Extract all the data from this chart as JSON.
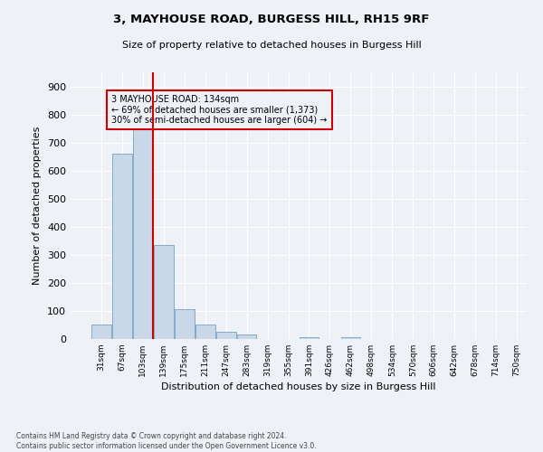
{
  "title1": "3, MAYHOUSE ROAD, BURGESS HILL, RH15 9RF",
  "title2": "Size of property relative to detached houses in Burgess Hill",
  "xlabel": "Distribution of detached houses by size in Burgess Hill",
  "ylabel": "Number of detached properties",
  "footer1": "Contains HM Land Registry data © Crown copyright and database right 2024.",
  "footer2": "Contains public sector information licensed under the Open Government Licence v3.0.",
  "annotation_line1": "3 MAYHOUSE ROAD: 134sqm",
  "annotation_line2": "← 69% of detached houses are smaller (1,373)",
  "annotation_line3": "30% of semi-detached houses are larger (604) →",
  "bin_labels": [
    "31sqm",
    "67sqm",
    "103sqm",
    "139sqm",
    "175sqm",
    "211sqm",
    "247sqm",
    "283sqm",
    "319sqm",
    "355sqm",
    "391sqm",
    "426sqm",
    "462sqm",
    "498sqm",
    "534sqm",
    "570sqm",
    "606sqm",
    "642sqm",
    "678sqm",
    "714sqm",
    "750sqm"
  ],
  "bar_heights": [
    50,
    660,
    750,
    335,
    107,
    50,
    25,
    17,
    0,
    0,
    8,
    0,
    8,
    0,
    0,
    0,
    0,
    0,
    0,
    0
  ],
  "bar_color": "#c8d8e8",
  "bar_edge_color": "#7aa0be",
  "vline_color": "#cc0000",
  "annotation_box_color": "#cc0000",
  "ylim": [
    0,
    950
  ],
  "yticks": [
    0,
    100,
    200,
    300,
    400,
    500,
    600,
    700,
    800,
    900
  ],
  "bg_color": "#eef2f7",
  "grid_color": "#ffffff",
  "property_size_sqm": 134
}
